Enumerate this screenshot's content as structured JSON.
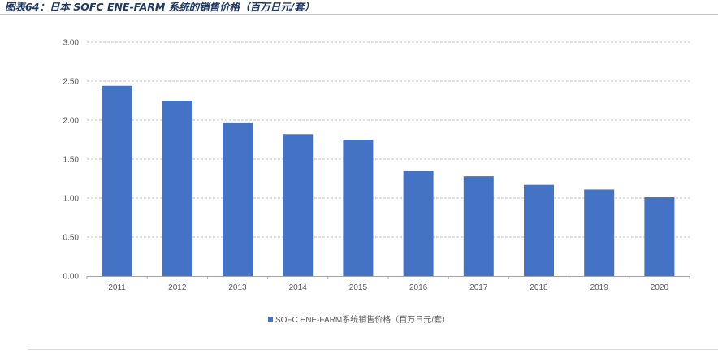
{
  "header": {
    "title": "图表64：日本 SOFC ENE-FARM 系统的销售价格（百万日元/套）"
  },
  "chart_data": {
    "type": "bar",
    "categories": [
      "2011",
      "2012",
      "2013",
      "2014",
      "2015",
      "2016",
      "2017",
      "2018",
      "2019",
      "2020"
    ],
    "series": [
      {
        "name": "SOFC ENE-FARM系统销售价格（百万日元/套）",
        "values": [
          2.44,
          2.25,
          1.97,
          1.82,
          1.75,
          1.35,
          1.28,
          1.17,
          1.11,
          1.01
        ],
        "color": "#4472c4"
      }
    ],
    "yticks": [
      "0.00",
      "0.50",
      "1.00",
      "1.50",
      "2.00",
      "2.50",
      "3.00"
    ],
    "ylim": [
      0,
      3
    ],
    "grid": true,
    "legend": "bottom"
  }
}
